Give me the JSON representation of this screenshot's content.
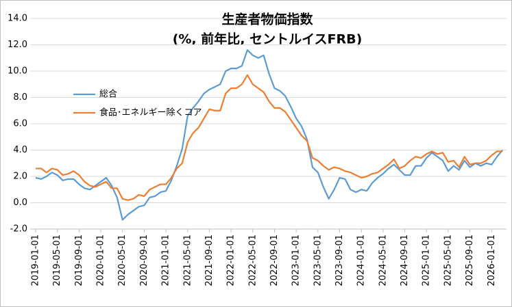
{
  "chart_data": {
    "type": "line",
    "title": "生産者物価指数",
    "subtitle": "(%, 前年比, セントルイスFRB)",
    "x": [
      "2019-01-01",
      "2019-02-01",
      "2019-03-01",
      "2019-04-01",
      "2019-05-01",
      "2019-06-01",
      "2019-07-01",
      "2019-08-01",
      "2019-09-01",
      "2019-10-01",
      "2019-11-01",
      "2019-12-01",
      "2020-01-01",
      "2020-02-01",
      "2020-03-01",
      "2020-04-01",
      "2020-05-01",
      "2020-06-01",
      "2020-07-01",
      "2020-08-01",
      "2020-09-01",
      "2020-10-01",
      "2020-11-01",
      "2020-12-01",
      "2021-01-01",
      "2021-02-01",
      "2021-03-01",
      "2021-04-01",
      "2021-05-01",
      "2021-06-01",
      "2021-07-01",
      "2021-08-01",
      "2021-09-01",
      "2021-10-01",
      "2021-11-01",
      "2021-12-01",
      "2022-01-01",
      "2022-02-01",
      "2022-03-01",
      "2022-04-01",
      "2022-05-01",
      "2022-06-01",
      "2022-07-01",
      "2022-08-01",
      "2022-09-01",
      "2022-10-01",
      "2022-11-01",
      "2022-12-01",
      "2023-01-01",
      "2023-02-01",
      "2023-03-01",
      "2023-04-01",
      "2023-05-01",
      "2023-06-01",
      "2023-07-01",
      "2023-08-01",
      "2023-09-01",
      "2023-10-01",
      "2023-11-01",
      "2023-12-01",
      "2024-01-01",
      "2024-02-01",
      "2024-03-01",
      "2024-04-01",
      "2024-05-01",
      "2024-06-01",
      "2024-07-01",
      "2024-08-01",
      "2024-09-01",
      "2024-10-01",
      "2024-11-01",
      "2024-12-01",
      "2025-01-01",
      "2025-02-01",
      "2025-03-01",
      "2025-04-01",
      "2025-05-01",
      "2025-06-01",
      "2025-07-01",
      "2025-08-01",
      "2025-09-01",
      "2025-10-01",
      "2025-11-01",
      "2025-12-01",
      "2026-01-01",
      "2026-02-01",
      "2026-03-01"
    ],
    "xticks": [
      "2019-01-01",
      "2019-05-01",
      "2019-09-01",
      "2020-01-01",
      "2020-05-01",
      "2020-09-01",
      "2021-01-01",
      "2021-05-01",
      "2021-09-01",
      "2022-01-01",
      "2022-05-01",
      "2022-09-01",
      "2023-01-01",
      "2023-05-01",
      "2023-09-01",
      "2024-01-01",
      "2024-05-01",
      "2024-09-01",
      "2025-01-01",
      "2025-05-01",
      "2025-09-01",
      "2026-01-01"
    ],
    "series": [
      {
        "name": "総合",
        "color": "#5b9bd5",
        "values": [
          1.9,
          1.8,
          2.0,
          2.3,
          2.1,
          1.7,
          1.8,
          1.8,
          1.4,
          1.1,
          1.0,
          1.3,
          1.6,
          1.9,
          1.3,
          0.4,
          -1.3,
          -0.9,
          -0.6,
          -0.3,
          -0.2,
          0.4,
          0.5,
          0.8,
          0.9,
          1.7,
          2.8,
          4.1,
          6.6,
          7.2,
          7.7,
          8.3,
          8.6,
          8.8,
          9.0,
          10.0,
          10.2,
          10.2,
          10.4,
          11.6,
          11.2,
          11.0,
          11.2,
          9.8,
          8.7,
          8.5,
          8.1,
          7.3,
          6.4,
          5.8,
          4.8,
          2.7,
          2.3,
          1.2,
          0.3,
          1.0,
          1.9,
          1.8,
          1.0,
          0.8,
          1.0,
          0.9,
          1.5,
          1.9,
          2.2,
          2.6,
          2.9,
          2.5,
          2.1,
          2.1,
          2.8,
          2.8,
          3.4,
          3.8,
          3.5,
          3.2,
          2.4,
          2.8,
          2.5,
          3.2,
          2.7,
          3.0,
          2.8,
          3.0,
          2.9,
          3.5,
          4.0
        ]
      },
      {
        "name": "食品･エネルギー除くコア",
        "color": "#ed7d31",
        "values": [
          2.6,
          2.6,
          2.3,
          2.6,
          2.5,
          2.1,
          2.2,
          2.4,
          2.1,
          1.6,
          1.3,
          1.2,
          1.4,
          1.6,
          1.1,
          1.1,
          0.3,
          0.2,
          0.3,
          0.6,
          0.5,
          1.0,
          1.2,
          1.4,
          1.4,
          1.9,
          2.6,
          3.0,
          4.6,
          5.3,
          5.7,
          6.4,
          7.1,
          7.0,
          7.0,
          8.3,
          8.7,
          8.7,
          9.0,
          9.7,
          9.0,
          8.7,
          8.4,
          7.7,
          7.2,
          7.2,
          6.9,
          6.3,
          5.7,
          5.1,
          4.7,
          3.4,
          3.2,
          2.8,
          2.5,
          2.7,
          2.6,
          2.4,
          2.3,
          2.1,
          1.9,
          2.0,
          2.2,
          2.3,
          2.6,
          2.9,
          3.3,
          2.6,
          2.8,
          3.2,
          3.5,
          3.4,
          3.7,
          3.9,
          3.7,
          3.8,
          3.1,
          3.2,
          2.7,
          3.5,
          2.9,
          3.0,
          3.0,
          3.2,
          3.6,
          3.9,
          3.9
        ]
      }
    ],
    "ylim": [
      -2,
      14
    ],
    "yticks": [
      {
        "value": -2,
        "label": "-2.0"
      },
      {
        "value": 0,
        "label": "0.0"
      },
      {
        "value": 2,
        "label": "2.0"
      },
      {
        "value": 4,
        "label": "4.0"
      },
      {
        "value": 6,
        "label": "6.0"
      },
      {
        "value": 8,
        "label": "8.0"
      },
      {
        "value": 10,
        "label": "10.0"
      },
      {
        "value": 12,
        "label": "12.0"
      },
      {
        "value": 14,
        "label": "14.0"
      }
    ],
    "grid": true,
    "legend": "upper left"
  }
}
